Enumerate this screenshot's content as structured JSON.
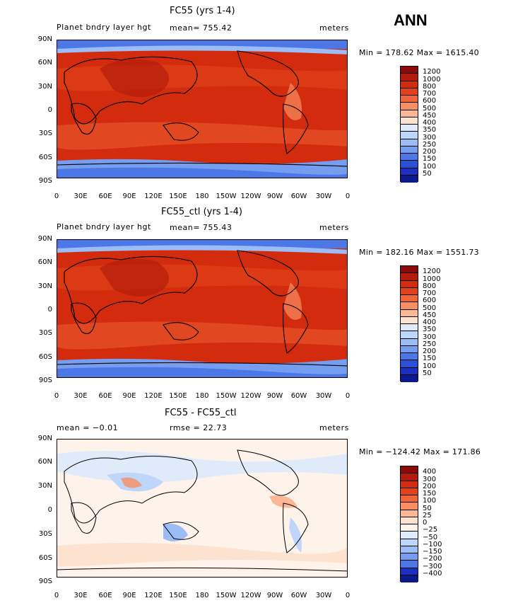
{
  "season": "ANN",
  "x_tick_labels": [
    "0",
    "30E",
    "60E",
    "90E",
    "120E",
    "150E",
    "180",
    "150W",
    "120W",
    "90W",
    "60W",
    "30W",
    "0"
  ],
  "y_tick_labels": [
    "90N",
    "60N",
    "30N",
    "0",
    "30S",
    "60S",
    "90S"
  ],
  "abs_levels": [
    "1200",
    "1000",
    "800",
    "700",
    "600",
    "500",
    "450",
    "400",
    "350",
    "300",
    "250",
    "200",
    "150",
    "100",
    "50"
  ],
  "abs_colors": [
    "#8e0a0a",
    "#b31c0c",
    "#d22b0d",
    "#e2421b",
    "#ef6538",
    "#f88e62",
    "#fcb796",
    "#fde2cf",
    "#dfeafb",
    "#bed6fa",
    "#9cbcf6",
    "#769ef0",
    "#4b78e6",
    "#2a4fd8",
    "#1c2fc0",
    "#0c1a8c"
  ],
  "diff_levels": [
    "400",
    "300",
    "200",
    "150",
    "100",
    "50",
    "25",
    "0",
    "−25",
    "−50",
    "−100",
    "−150",
    "−200",
    "−300",
    "−400"
  ],
  "diff_colors": [
    "#8e0a0a",
    "#b31c0c",
    "#d22b0d",
    "#e2421b",
    "#ef6538",
    "#f88e62",
    "#fcb796",
    "#fde2cf",
    "#fef3ea",
    "#dfeafb",
    "#bed6fa",
    "#9cbcf6",
    "#769ef0",
    "#4b78e6",
    "#1c2fc0",
    "#0c1a8c"
  ],
  "panels": [
    {
      "title": "FC55 (yrs 1-4)",
      "left_label": "Planet bndry layer hgt",
      "center_label": "mean= 755.42",
      "right_label": "meters",
      "minmax": "Min = 178.62 Max = 1615.40"
    },
    {
      "title": "FC55_ctl (yrs 1-4)",
      "left_label": "Planet bndry layer hgt",
      "center_label": "mean= 755.43",
      "right_label": "meters",
      "minmax": "Min = 182.16 Max = 1551.73"
    },
    {
      "title": "FC55 - FC55_ctl",
      "left_label": "mean =   −0.01",
      "center_label": "rmse =   22.73",
      "right_label": "meters",
      "minmax": "Min = −124.42 Max = 171.86"
    }
  ],
  "chart_data": [
    {
      "type": "heatmap",
      "title": "FC55 (yrs 1-4)",
      "field": "Planet bndry layer hgt",
      "units": "meters",
      "mean": 755.42,
      "min": 178.62,
      "max": 1615.4,
      "x_range": [
        0,
        360
      ],
      "y_range": [
        -90,
        90
      ],
      "contour_levels": [
        50,
        100,
        150,
        200,
        250,
        300,
        350,
        400,
        450,
        500,
        600,
        700,
        800,
        1000,
        1200
      ]
    },
    {
      "type": "heatmap",
      "title": "FC55_ctl (yrs 1-4)",
      "field": "Planet bndry layer hgt",
      "units": "meters",
      "mean": 755.43,
      "min": 182.16,
      "max": 1551.73,
      "x_range": [
        0,
        360
      ],
      "y_range": [
        -90,
        90
      ],
      "contour_levels": [
        50,
        100,
        150,
        200,
        250,
        300,
        350,
        400,
        450,
        500,
        600,
        700,
        800,
        1000,
        1200
      ]
    },
    {
      "type": "heatmap",
      "title": "FC55 - FC55_ctl",
      "units": "meters",
      "mean": -0.01,
      "rmse": 22.73,
      "min": -124.42,
      "max": 171.86,
      "x_range": [
        0,
        360
      ],
      "y_range": [
        -90,
        90
      ],
      "contour_levels": [
        -400,
        -300,
        -200,
        -150,
        -100,
        -50,
        -25,
        0,
        25,
        50,
        100,
        150,
        200,
        300,
        400
      ]
    }
  ]
}
